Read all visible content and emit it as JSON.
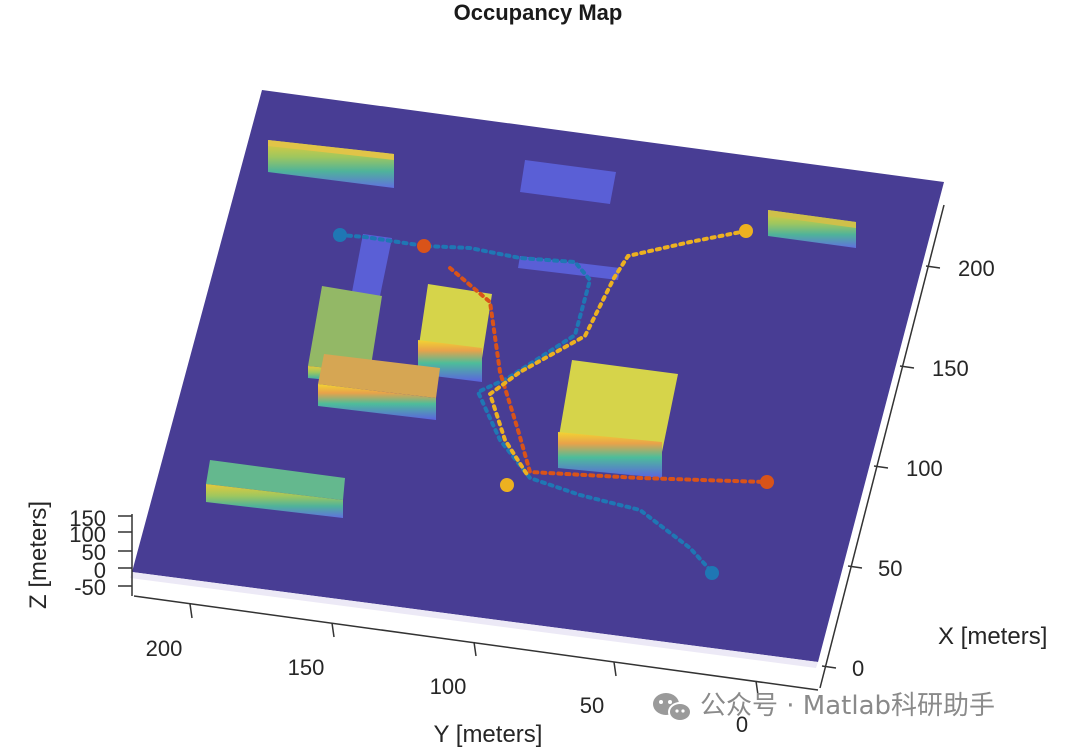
{
  "chart_data": {
    "type": "3d-occupancy-map",
    "title": "Occupancy Map",
    "xlabel": "X [meters]",
    "ylabel": "Y [meters]",
    "zlabel": "Z [meters]",
    "x_ticks": [
      "0",
      "50",
      "100",
      "150",
      "200"
    ],
    "y_ticks": [
      "0",
      "50",
      "100",
      "150",
      "200"
    ],
    "z_ticks": [
      "150",
      "100",
      "50",
      "0",
      "-50"
    ],
    "xlim": [
      0,
      220
    ],
    "ylim": [
      0,
      220
    ],
    "colors": {
      "ground": "#483d94",
      "path_blue": "#1f77b4",
      "path_orange": "#d95319",
      "path_yellow": "#edb120"
    },
    "paths": [
      {
        "color": "#1f77b4",
        "points": [
          [
            41,
            33
          ],
          [
            110,
            100
          ],
          [
            150,
            150
          ],
          [
            210,
            195
          ]
        ]
      },
      {
        "color": "#d95319",
        "points": [
          [
            90,
            18
          ],
          [
            110,
            100
          ],
          [
            195,
            170
          ]
        ]
      },
      {
        "color": "#edb120",
        "points": [
          [
            105,
            110
          ],
          [
            150,
            140
          ],
          [
            215,
            40
          ]
        ]
      }
    ]
  },
  "watermark": {
    "text": "公众号 · Matlab科研助手"
  }
}
